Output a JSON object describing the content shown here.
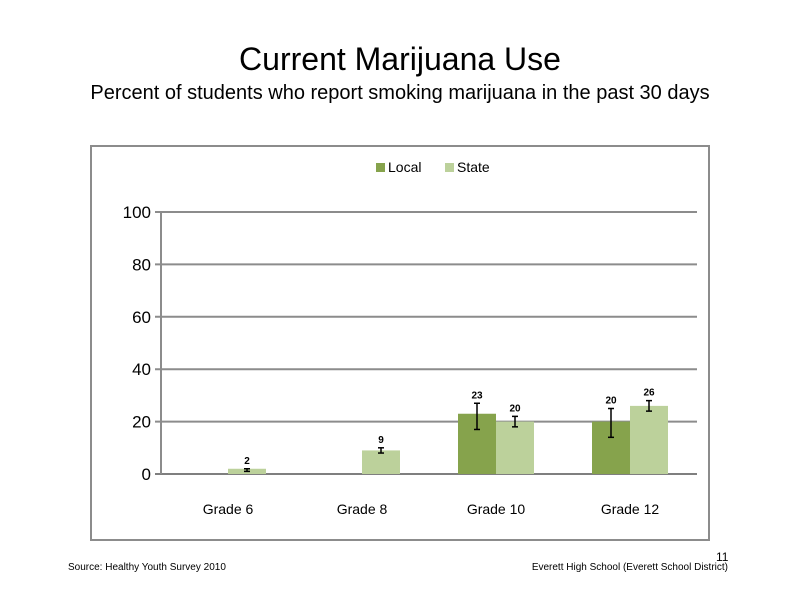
{
  "slide": {
    "page_number": "11",
    "footer_source": "Source: Healthy Youth Survey 2010",
    "footer_school": "Everett High School (Everett School District)"
  },
  "chart_data": {
    "type": "bar",
    "title": "Current Marijuana Use",
    "subtitle": "Percent of students who report smoking marijuana in the past 30 days",
    "categories": [
      "Grade 6",
      "Grade 8",
      "Grade 10",
      "Grade 12"
    ],
    "series": [
      {
        "name": "Local",
        "color": "#86a34c",
        "values": [
          null,
          null,
          23,
          20
        ],
        "labels": [
          "",
          "",
          "23",
          "20"
        ],
        "error_low": [
          null,
          null,
          17,
          14
        ],
        "error_high": [
          null,
          null,
          27,
          25
        ]
      },
      {
        "name": "State",
        "color": "#bcd19b",
        "values": [
          2,
          9,
          20,
          26
        ],
        "labels": [
          "2",
          "9",
          "20",
          "26"
        ],
        "error_low": [
          1,
          8,
          18,
          24
        ],
        "error_high": [
          2,
          10,
          22,
          28
        ]
      }
    ],
    "ylim": [
      0,
      100
    ],
    "yticks": [
      0,
      20,
      40,
      60,
      80,
      100
    ],
    "grid": true,
    "legend_position": "top"
  }
}
